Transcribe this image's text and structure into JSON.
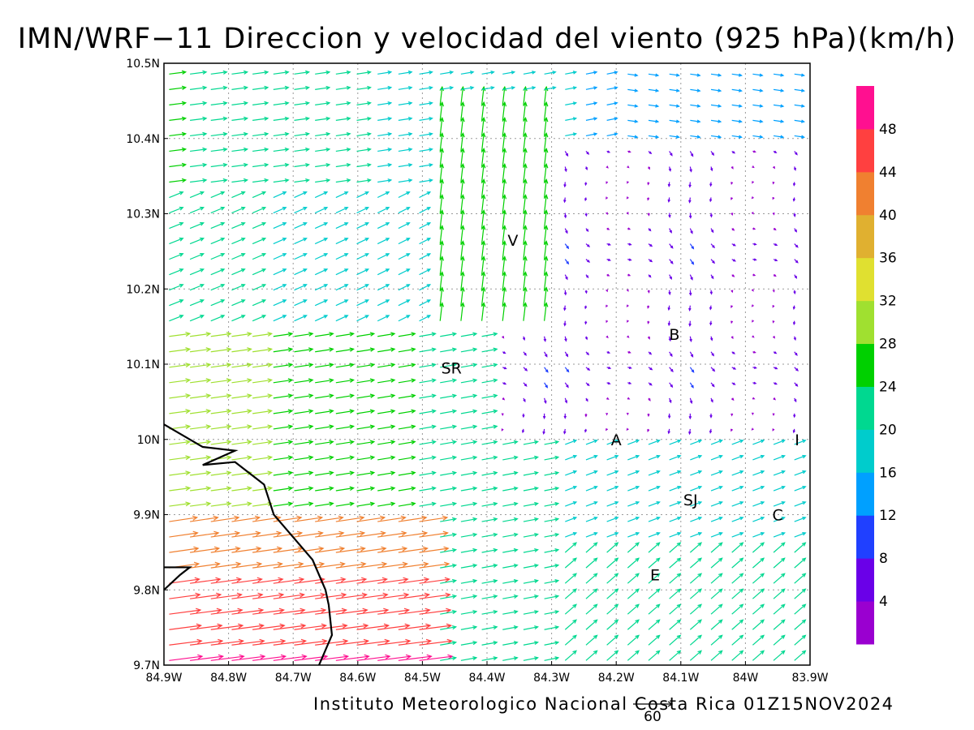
{
  "title": "IMN/WRF−11 Direccion y velocidad del viento (925 hPa)(km/h)",
  "credit": "Instituto Meteorologico Nacional Costa Rica 01Z15NOV2024",
  "chart_data": {
    "type": "vector",
    "x_ticks": [
      "84.9W",
      "84.8W",
      "84.7W",
      "84.6W",
      "84.5W",
      "84.4W",
      "84.3W",
      "84.2W",
      "84.1W",
      "84W",
      "83.9W"
    ],
    "y_ticks": [
      "10.5N",
      "10.4N",
      "10.3N",
      "10.2N",
      "10.1N",
      "10N",
      "9.9N",
      "9.8N",
      "9.7N"
    ],
    "xlim": [
      -84.9,
      -83.9
    ],
    "ylim": [
      9.7,
      10.5
    ],
    "grid": true,
    "reference_vector": {
      "value": 60,
      "label": "60"
    },
    "colorbar": {
      "placement": "right",
      "labels": [
        "4",
        "8",
        "12",
        "16",
        "20",
        "24",
        "28",
        "32",
        "36",
        "40",
        "44",
        "48"
      ],
      "colors": [
        "#9a00d0",
        "#6a00e8",
        "#2040ff",
        "#00a0ff",
        "#00cccc",
        "#00d890",
        "#00d000",
        "#a0e030",
        "#e0e030",
        "#e0b030",
        "#f08030",
        "#ff4040",
        "#ff1090"
      ]
    },
    "places": [
      {
        "label": "V",
        "lon": -84.36,
        "lat": 10.265
      },
      {
        "label": "B",
        "lon": -84.11,
        "lat": 10.14
      },
      {
        "label": "SR",
        "lon": -84.455,
        "lat": 10.095
      },
      {
        "label": "A",
        "lon": -84.2,
        "lat": 10.0
      },
      {
        "label": "I",
        "lon": -83.92,
        "lat": 10.0
      },
      {
        "label": "SJ",
        "lon": -84.085,
        "lat": 9.92
      },
      {
        "label": "C",
        "lon": -83.95,
        "lat": 9.9
      },
      {
        "label": "E",
        "lon": -84.14,
        "lat": 9.82
      }
    ],
    "coastline": [
      [
        -84.9,
        10.02
      ],
      [
        -84.84,
        9.99
      ],
      [
        -84.79,
        9.985
      ],
      [
        -84.84,
        9.966
      ],
      [
        -84.79,
        9.97
      ],
      [
        -84.76,
        9.95
      ],
      [
        -84.745,
        9.94
      ],
      [
        -84.73,
        9.9
      ],
      [
        -84.7,
        9.87
      ],
      [
        -84.67,
        9.84
      ],
      [
        -84.65,
        9.8
      ],
      [
        -84.645,
        9.78
      ],
      [
        -84.64,
        9.74
      ],
      [
        -84.66,
        9.7
      ]
    ],
    "coastline2": [
      [
        -84.9,
        9.8
      ],
      [
        -84.875,
        9.82
      ],
      [
        -84.86,
        9.83
      ],
      [
        -84.9,
        9.83
      ]
    ]
  }
}
